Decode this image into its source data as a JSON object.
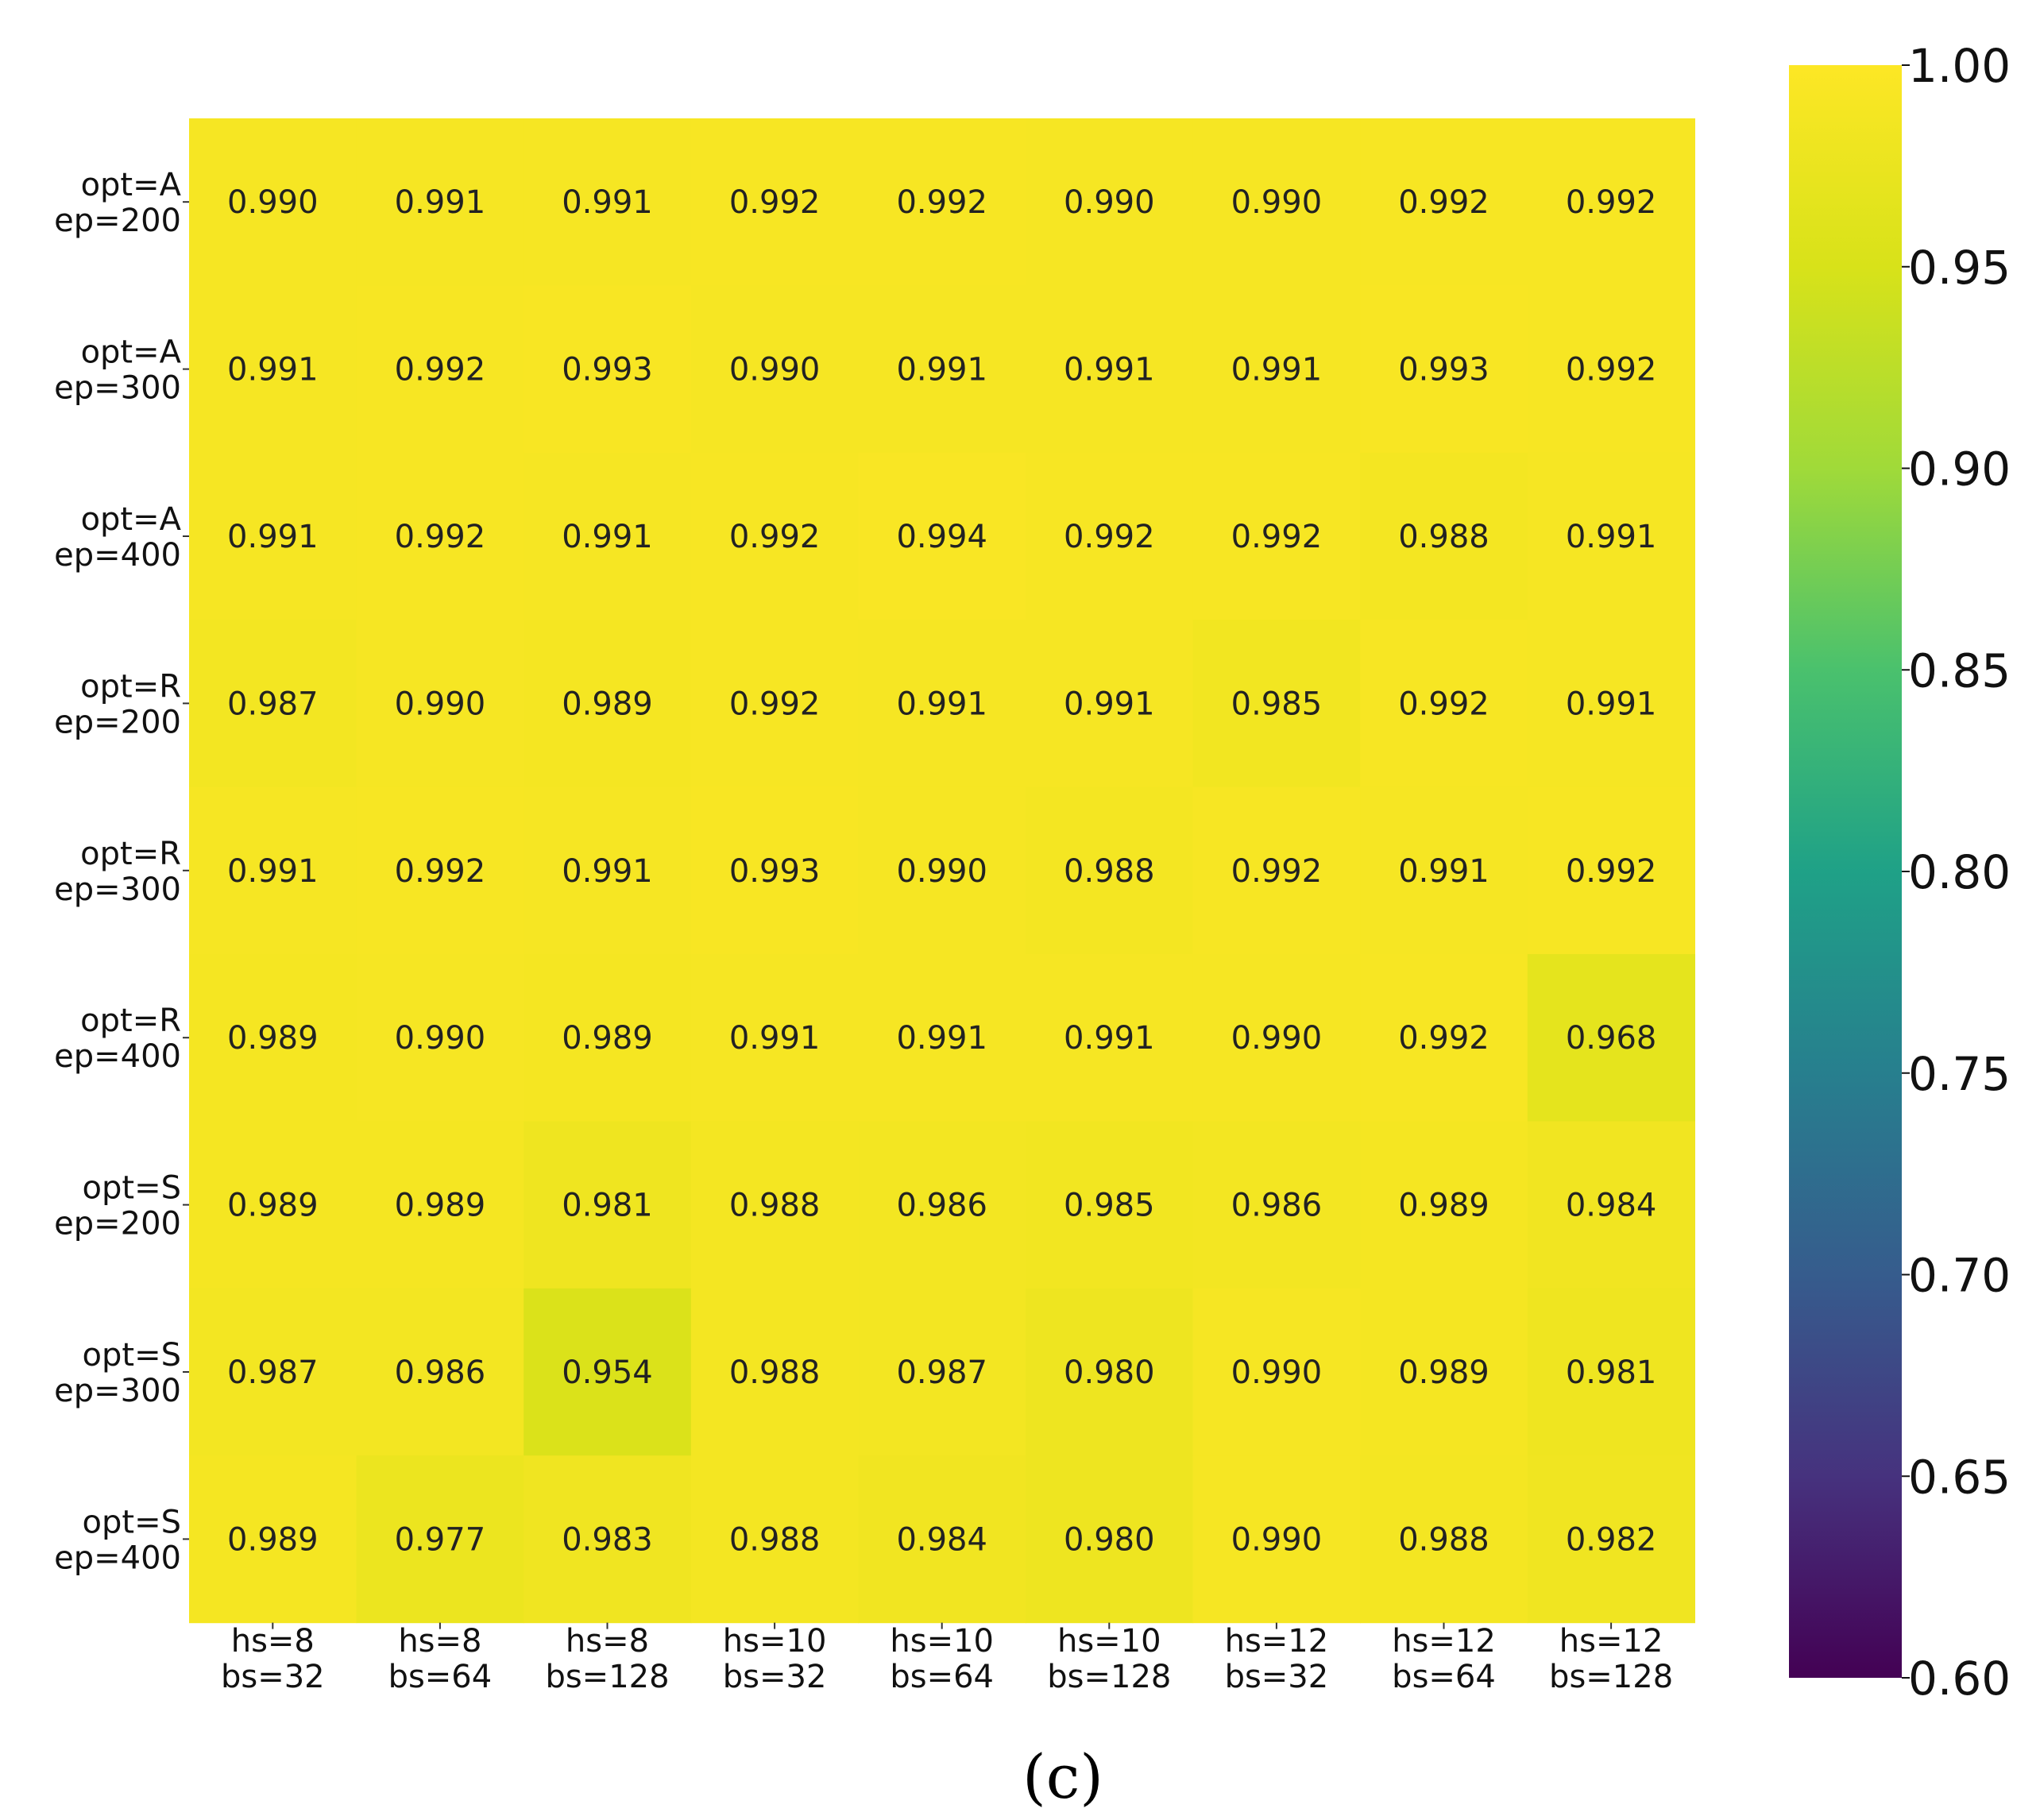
{
  "caption": "(c)",
  "chart_data": {
    "type": "heatmap",
    "title": "",
    "xlabel": "",
    "ylabel": "",
    "x_categories": [
      [
        "hs=8",
        "bs=32"
      ],
      [
        "hs=8",
        "bs=64"
      ],
      [
        "hs=8",
        "bs=128"
      ],
      [
        "hs=10",
        "bs=32"
      ],
      [
        "hs=10",
        "bs=64"
      ],
      [
        "hs=10",
        "bs=128"
      ],
      [
        "hs=12",
        "bs=32"
      ],
      [
        "hs=12",
        "bs=64"
      ],
      [
        "hs=12",
        "bs=128"
      ]
    ],
    "y_categories": [
      [
        "opt=A",
        "ep=200"
      ],
      [
        "opt=A",
        "ep=300"
      ],
      [
        "opt=A",
        "ep=400"
      ],
      [
        "opt=R",
        "ep=200"
      ],
      [
        "opt=R",
        "ep=300"
      ],
      [
        "opt=R",
        "ep=400"
      ],
      [
        "opt=S",
        "ep=200"
      ],
      [
        "opt=S",
        "ep=300"
      ],
      [
        "opt=S",
        "ep=400"
      ]
    ],
    "values": [
      [
        0.99,
        0.991,
        0.991,
        0.992,
        0.992,
        0.99,
        0.99,
        0.992,
        0.992
      ],
      [
        0.991,
        0.992,
        0.993,
        0.99,
        0.991,
        0.991,
        0.991,
        0.993,
        0.992
      ],
      [
        0.991,
        0.992,
        0.991,
        0.992,
        0.994,
        0.992,
        0.992,
        0.988,
        0.991
      ],
      [
        0.987,
        0.99,
        0.989,
        0.992,
        0.991,
        0.991,
        0.985,
        0.992,
        0.991
      ],
      [
        0.991,
        0.992,
        0.991,
        0.993,
        0.99,
        0.988,
        0.992,
        0.991,
        0.992
      ],
      [
        0.989,
        0.99,
        0.989,
        0.991,
        0.991,
        0.991,
        0.99,
        0.992,
        0.968
      ],
      [
        0.989,
        0.989,
        0.981,
        0.988,
        0.986,
        0.985,
        0.986,
        0.989,
        0.984
      ],
      [
        0.987,
        0.986,
        0.954,
        0.988,
        0.987,
        0.98,
        0.99,
        0.989,
        0.981
      ],
      [
        0.989,
        0.977,
        0.983,
        0.988,
        0.984,
        0.98,
        0.99,
        0.988,
        0.982
      ]
    ],
    "value_format": "0.000",
    "colormap": "viridis",
    "vmin": 0.6,
    "vmax": 1.0,
    "colorbar_ticks": [
      "1.00",
      "0.95",
      "0.90",
      "0.85",
      "0.80",
      "0.75",
      "0.70",
      "0.65",
      "0.60"
    ],
    "colorbar_tick_values": [
      1.0,
      0.95,
      0.9,
      0.85,
      0.8,
      0.75,
      0.7,
      0.65,
      0.6
    ],
    "colorbar_position": "right",
    "grid": false
  }
}
